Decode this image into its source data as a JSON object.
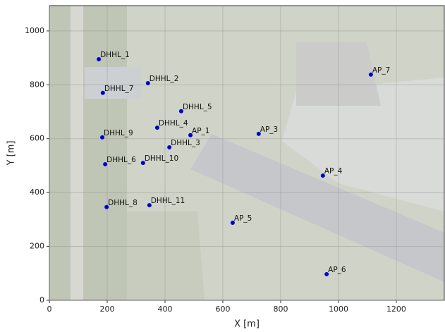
{
  "chart_data": {
    "type": "scatter",
    "xlabel": "X [m]",
    "ylabel": "Y [m]",
    "labels": [
      "DHHL_1",
      "DHHL_2",
      "DHHL_7",
      "DHHL_5",
      "DHHL_4",
      "AP_1",
      "AP_3",
      "DHHL_9",
      "DHHL_3",
      "DHHL_10",
      "DHHL_6",
      "AP_4",
      "DHHL_11",
      "DHHL_8",
      "AP_5",
      "AP_6",
      "AP_7"
    ],
    "x": [
      171,
      341,
      185,
      456,
      373,
      488,
      724,
      183,
      415,
      324,
      193,
      946,
      346,
      198,
      634,
      959,
      1112
    ],
    "values": [
      895,
      806,
      770,
      702,
      641,
      613,
      618,
      605,
      568,
      510,
      505,
      463,
      353,
      346,
      288,
      97,
      838
    ],
    "color": "#0000cc",
    "xlim": [
      0,
      1366
    ],
    "ylim": [
      0,
      1094
    ],
    "xticks": [
      0,
      200,
      400,
      600,
      800,
      1000,
      1200
    ],
    "yticks": [
      0,
      200,
      400,
      600,
      800,
      1000
    ],
    "grid": true
  }
}
